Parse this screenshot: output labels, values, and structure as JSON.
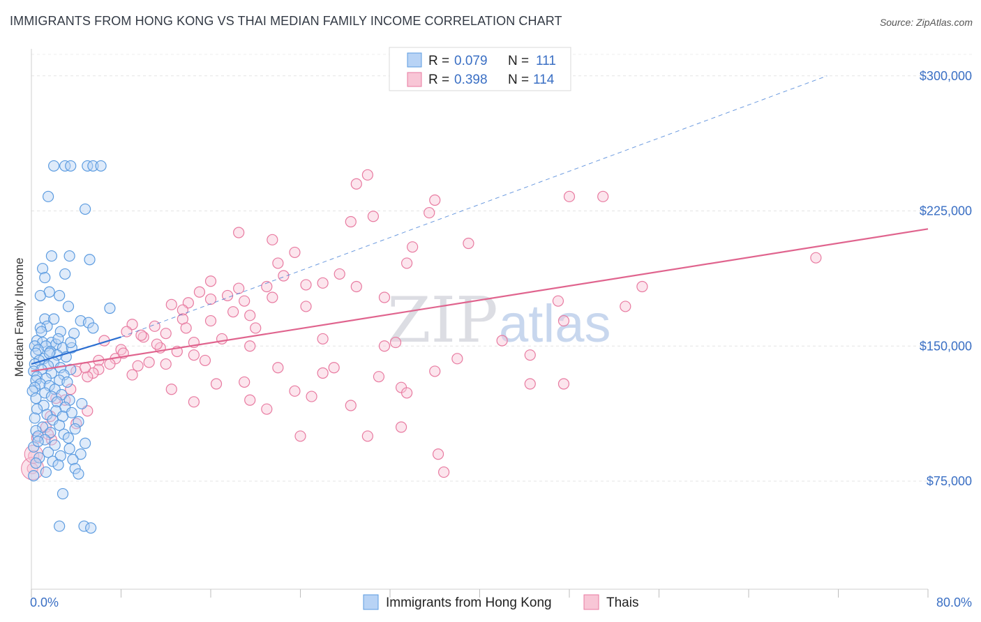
{
  "title": "IMMIGRANTS FROM HONG KONG VS THAI MEDIAN FAMILY INCOME CORRELATION CHART",
  "source": "Source: ZipAtlas.com",
  "colors": {
    "blue": "#5b9be0",
    "blue_fill": "#b8d3f5",
    "pink": "#e87aa0",
    "pink_fill": "#f8c6d6",
    "axis_text": "#3a6fc4",
    "trend_blue": "#2c6fd1",
    "trend_pink": "#e0648e"
  },
  "legend": {
    "r_label": "R =",
    "n_label": "N =",
    "rows": [
      {
        "r": "0.079",
        "n": "111"
      },
      {
        "r": "0.398",
        "n": "114"
      }
    ]
  },
  "watermark": {
    "part1": "ZIP",
    "part2": "atlas"
  },
  "chart_data": {
    "type": "scatter",
    "ylabel": "Median Family Income",
    "xlim": [
      0,
      80
    ],
    "ylim": [
      15000,
      315000
    ],
    "y_ticks": [
      {
        "value": 75000,
        "label": "$75,000"
      },
      {
        "value": 150000,
        "label": "$150,000"
      },
      {
        "value": 225000,
        "label": "$225,000"
      },
      {
        "value": 300000,
        "label": "$300,000"
      }
    ],
    "x_tick_labels": {
      "min": "0.0%",
      "max": "80.0%"
    },
    "grid": true,
    "legend_position": "top-center",
    "series": [
      {
        "name": "Immigrants from Hong Kong",
        "trend": {
          "x0": 0,
          "y0": 140000,
          "x1": 8,
          "y1": 155000,
          "dash_to_x": 71,
          "dash_to_y": 300000
        },
        "points": [
          [
            2,
            250000
          ],
          [
            3,
            250000
          ],
          [
            3.5,
            250000
          ],
          [
            5,
            250000
          ],
          [
            5.5,
            250000
          ],
          [
            6.2,
            250000
          ],
          [
            1.5,
            233000
          ],
          [
            4.8,
            226000
          ],
          [
            1.8,
            200000
          ],
          [
            3.4,
            200000
          ],
          [
            5.2,
            198000
          ],
          [
            1,
            193000
          ],
          [
            3,
            190000
          ],
          [
            1.2,
            188000
          ],
          [
            1.6,
            180000
          ],
          [
            2.5,
            178000
          ],
          [
            0.8,
            178000
          ],
          [
            3.3,
            172000
          ],
          [
            7,
            171000
          ],
          [
            1.2,
            165000
          ],
          [
            2,
            165000
          ],
          [
            4.4,
            164000
          ],
          [
            5.1,
            163000
          ],
          [
            1.4,
            161000
          ],
          [
            0.8,
            160000
          ],
          [
            2.6,
            158000
          ],
          [
            3.8,
            157000
          ],
          [
            0.5,
            153000
          ],
          [
            1,
            152000
          ],
          [
            1.8,
            152000
          ],
          [
            2.2,
            151000
          ],
          [
            0.3,
            150000
          ],
          [
            1.3,
            150000
          ],
          [
            2.8,
            149000
          ],
          [
            3.6,
            149000
          ],
          [
            0.6,
            148000
          ],
          [
            1.7,
            147000
          ],
          [
            0.4,
            146000
          ],
          [
            2.3,
            145000
          ],
          [
            3.1,
            144000
          ],
          [
            1.1,
            143000
          ],
          [
            0.7,
            142000
          ],
          [
            2,
            141000
          ],
          [
            0.3,
            140000
          ],
          [
            1.5,
            139000
          ],
          [
            2.6,
            138000
          ],
          [
            0.9,
            137000
          ],
          [
            3.5,
            137000
          ],
          [
            0.2,
            136000
          ],
          [
            1.8,
            135000
          ],
          [
            2.9,
            134000
          ],
          [
            0.5,
            133000
          ],
          [
            1.3,
            132000
          ],
          [
            0.4,
            131000
          ],
          [
            2.5,
            131000
          ],
          [
            3.2,
            130000
          ],
          [
            0.8,
            129000
          ],
          [
            1.6,
            128000
          ],
          [
            0.3,
            127000
          ],
          [
            2.1,
            126000
          ],
          [
            0.1,
            125000
          ],
          [
            1.2,
            124000
          ],
          [
            2.7,
            123000
          ],
          [
            1.8,
            122000
          ],
          [
            0.4,
            121000
          ],
          [
            3.4,
            120000
          ],
          [
            2.3,
            119000
          ],
          [
            4.5,
            118000
          ],
          [
            1.1,
            117000
          ],
          [
            3,
            116000
          ],
          [
            0.5,
            115000
          ],
          [
            2.2,
            114000
          ],
          [
            3.6,
            113000
          ],
          [
            1.4,
            112000
          ],
          [
            2.8,
            111000
          ],
          [
            0.3,
            110000
          ],
          [
            1.9,
            109000
          ],
          [
            4.2,
            108000
          ],
          [
            2.5,
            106000
          ],
          [
            1,
            105000
          ],
          [
            3.9,
            104000
          ],
          [
            0.4,
            103000
          ],
          [
            1.7,
            102000
          ],
          [
            2.9,
            101000
          ],
          [
            0.6,
            100000
          ],
          [
            3.3,
            99000
          ],
          [
            1.2,
            98000
          ],
          [
            4.8,
            96000
          ],
          [
            2.1,
            95000
          ],
          [
            0.2,
            94000
          ],
          [
            3.4,
            93000
          ],
          [
            1.5,
            91000
          ],
          [
            4.4,
            90000
          ],
          [
            2.6,
            89000
          ],
          [
            0.7,
            88000
          ],
          [
            3.7,
            87000
          ],
          [
            1.9,
            86000
          ],
          [
            0.4,
            85000
          ],
          [
            2.4,
            84000
          ],
          [
            3.9,
            82000
          ],
          [
            1.3,
            80000
          ],
          [
            4.2,
            79000
          ],
          [
            0.2,
            78000
          ],
          [
            2.8,
            68000
          ],
          [
            2.5,
            50000
          ],
          [
            4.7,
            50000
          ],
          [
            5.3,
            49000
          ],
          [
            0.6,
            97000
          ],
          [
            1.6,
            146000
          ],
          [
            2.4,
            154000
          ],
          [
            0.9,
            158000
          ],
          [
            3.5,
            152000
          ],
          [
            5.5,
            160000
          ]
        ]
      },
      {
        "name": "Thais",
        "trend": {
          "x0": 0,
          "y0": 136000,
          "x1": 80,
          "y1": 215000
        },
        "points": [
          [
            30,
            245000
          ],
          [
            29,
            240000
          ],
          [
            48,
            233000
          ],
          [
            36,
            231000
          ],
          [
            51,
            233000
          ],
          [
            35.5,
            224000
          ],
          [
            30.5,
            222000
          ],
          [
            28.5,
            219000
          ],
          [
            18.5,
            213000
          ],
          [
            21.5,
            209000
          ],
          [
            34,
            205000
          ],
          [
            39,
            207000
          ],
          [
            23.5,
            202000
          ],
          [
            70,
            199000
          ],
          [
            33.5,
            196000
          ],
          [
            22,
            196000
          ],
          [
            27.5,
            190000
          ],
          [
            22.5,
            189000
          ],
          [
            16,
            186000
          ],
          [
            24.5,
            184000
          ],
          [
            26,
            185000
          ],
          [
            29,
            183000
          ],
          [
            18.5,
            182000
          ],
          [
            21,
            183000
          ],
          [
            54.5,
            183000
          ],
          [
            15,
            180000
          ],
          [
            17.5,
            178000
          ],
          [
            21.5,
            177000
          ],
          [
            31.5,
            177000
          ],
          [
            16,
            176000
          ],
          [
            19,
            175000
          ],
          [
            47,
            175000
          ],
          [
            12.5,
            173000
          ],
          [
            14,
            174000
          ],
          [
            24.5,
            172000
          ],
          [
            53,
            172000
          ],
          [
            13.5,
            170000
          ],
          [
            18,
            169000
          ],
          [
            19.5,
            167000
          ],
          [
            13.5,
            165000
          ],
          [
            16,
            164000
          ],
          [
            47.5,
            164000
          ],
          [
            9,
            162000
          ],
          [
            20,
            160000
          ],
          [
            11,
            161000
          ],
          [
            8.5,
            158000
          ],
          [
            12,
            157000
          ],
          [
            10,
            155000
          ],
          [
            26,
            154000
          ],
          [
            17,
            154000
          ],
          [
            6.5,
            153000
          ],
          [
            14.5,
            152000
          ],
          [
            32.5,
            152000
          ],
          [
            42,
            153000
          ],
          [
            19.5,
            150000
          ],
          [
            31.5,
            150000
          ],
          [
            11.5,
            149000
          ],
          [
            8,
            148000
          ],
          [
            13,
            147000
          ],
          [
            44.5,
            145000
          ],
          [
            14.5,
            145000
          ],
          [
            7.5,
            143000
          ],
          [
            38,
            143000
          ],
          [
            6,
            142000
          ],
          [
            10.5,
            141000
          ],
          [
            12,
            140000
          ],
          [
            9.5,
            139000
          ],
          [
            22,
            138000
          ],
          [
            27,
            138000
          ],
          [
            6,
            137000
          ],
          [
            4,
            136000
          ],
          [
            5.5,
            135000
          ],
          [
            36,
            136000
          ],
          [
            9,
            134000
          ],
          [
            5,
            133000
          ],
          [
            26,
            135000
          ],
          [
            31,
            133000
          ],
          [
            19,
            130000
          ],
          [
            16.5,
            129000
          ],
          [
            44.5,
            129000
          ],
          [
            47.5,
            129000
          ],
          [
            33,
            127000
          ],
          [
            12.5,
            126000
          ],
          [
            23.5,
            125000
          ],
          [
            33.5,
            124000
          ],
          [
            25,
            122000
          ],
          [
            19.5,
            120000
          ],
          [
            3,
            120000
          ],
          [
            14.5,
            119000
          ],
          [
            28.5,
            117000
          ],
          [
            21,
            115000
          ],
          [
            5,
            114000
          ],
          [
            1.7,
            111000
          ],
          [
            4,
            107000
          ],
          [
            1.3,
            105000
          ],
          [
            33,
            105000
          ],
          [
            36.3,
            90000
          ],
          [
            36.8,
            80000
          ],
          [
            24,
            100000
          ],
          [
            30,
            100000
          ],
          [
            1.8,
            98000
          ],
          [
            0.5,
            99000
          ],
          [
            0.2,
            89000
          ],
          [
            0.1,
            82000
          ],
          [
            1.5,
            101000
          ],
          [
            2.2,
            121000
          ],
          [
            3.5,
            126000
          ],
          [
            4.8,
            138000
          ],
          [
            7,
            140000
          ],
          [
            8.2,
            146000
          ],
          [
            9.8,
            156000
          ],
          [
            11.2,
            151000
          ],
          [
            13.8,
            160000
          ],
          [
            15.5,
            142000
          ]
        ]
      }
    ]
  },
  "bottom_legend": [
    "Immigrants from Hong Kong",
    "Thais"
  ]
}
